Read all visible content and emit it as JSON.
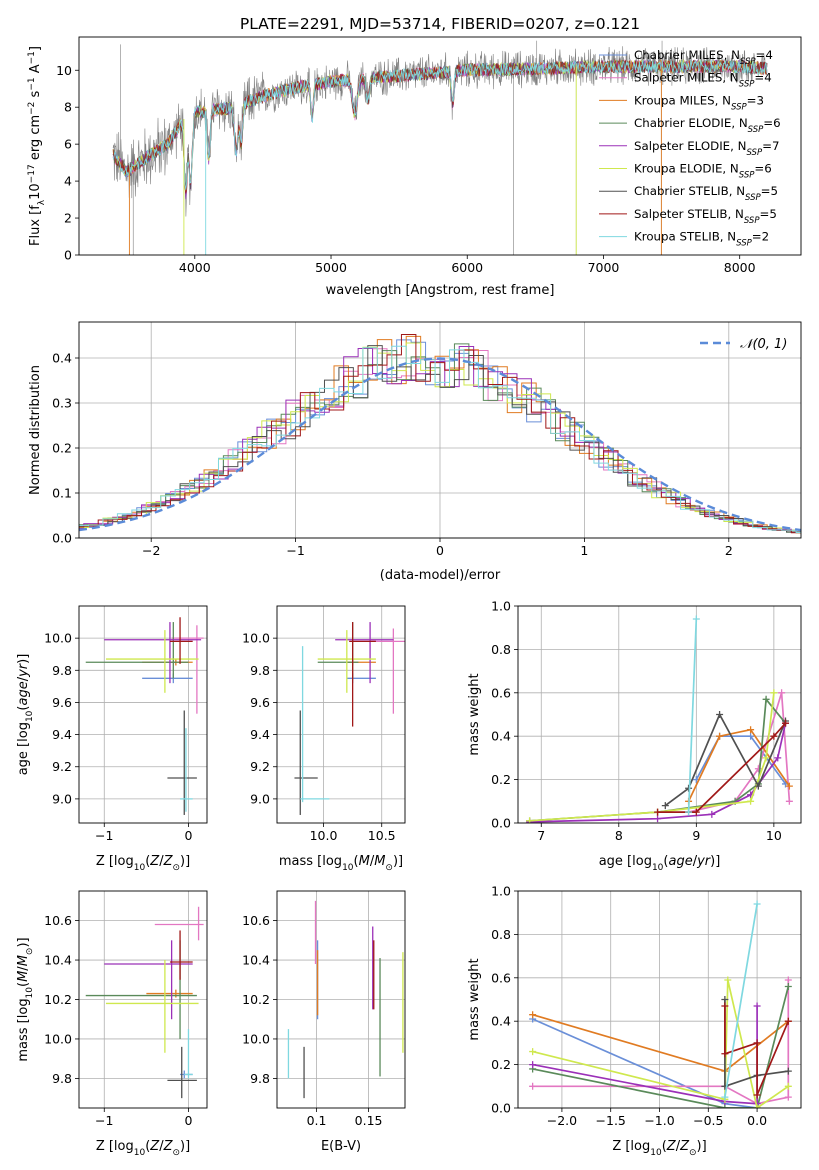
{
  "figure_title": "PLATE=2291, MJD=53714, FIBERID=0207, z=0.121",
  "colors": {
    "Chabrier MILES": "#6a8fd8",
    "Salpeter MILES": "#e377c2",
    "Kroupa MILES": "#e07b22",
    "Chabrier ELODIE": "#5a8a5a",
    "Salpeter ELODIE": "#9b30b8",
    "Kroupa ELODIE": "#cfe84e",
    "Chabrier STELIB": "#505050",
    "Salpeter STELIB": "#a01818",
    "Kroupa STELIB": "#7fd8e0"
  },
  "chart_data": [
    {
      "id": "spectrum",
      "type": "line",
      "xlabel": "wavelength [Angstrom, rest frame]",
      "ylabel": "Flux [f_λ 10^-17 erg cm^-2 s^-1 A^-1]",
      "xlim": [
        3150,
        8450
      ],
      "ylim": [
        0,
        11.8
      ],
      "xticks": [
        4000,
        5000,
        6000,
        7000,
        8000
      ],
      "yticks": [
        0,
        2,
        4,
        6,
        8,
        10
      ],
      "legend_position": "upper right",
      "legend": [
        {
          "pre": "Chabrier MILES, N",
          "sub": "SSP",
          "post": "=4"
        },
        {
          "pre": "Salpeter MILES, N",
          "sub": "SSP",
          "post": "=4"
        },
        {
          "pre": "Kroupa MILES, N",
          "sub": "SSP",
          "post": "=3"
        },
        {
          "pre": "Chabrier ELODIE, N",
          "sub": "SSP",
          "post": "=6"
        },
        {
          "pre": "Salpeter ELODIE, N",
          "sub": "SSP",
          "post": "=7"
        },
        {
          "pre": "Kroupa ELODIE, N",
          "sub": "SSP",
          "post": "=6"
        },
        {
          "pre": "Chabrier STELIB, N",
          "sub": "SSP",
          "post": "=5"
        },
        {
          "pre": "Salpeter STELIB, N",
          "sub": "SSP",
          "post": "=5"
        },
        {
          "pre": "Kroupa STELIB, N",
          "sub": "SSP",
          "post": "=2"
        }
      ],
      "continuum": [
        [
          3400,
          5.4
        ],
        [
          3500,
          4.5
        ],
        [
          3650,
          5.3
        ],
        [
          3800,
          6.0
        ],
        [
          3950,
          7.7
        ],
        [
          4100,
          7.8
        ],
        [
          4300,
          8.0
        ],
        [
          4500,
          8.6
        ],
        [
          4700,
          9.0
        ],
        [
          5000,
          9.4
        ],
        [
          5500,
          9.7
        ],
        [
          6000,
          10.0
        ],
        [
          6500,
          10.1
        ],
        [
          7000,
          10.2
        ],
        [
          7500,
          10.2
        ],
        [
          8000,
          10.2
        ],
        [
          8200,
          10.1
        ]
      ]
    },
    {
      "id": "residuals",
      "type": "line",
      "xlabel": "(data-model)/error",
      "ylabel": "Normed distribution",
      "xlim": [
        -2.5,
        2.5
      ],
      "ylim": [
        0,
        0.48
      ],
      "xticks": [
        -2,
        -1,
        0,
        1,
        2
      ],
      "yticks": [
        0.0,
        0.1,
        0.2,
        0.3,
        0.4
      ],
      "legend_label": "𝒩(0, 1)",
      "gaussian": {
        "mu": 0,
        "sigma": 1
      }
    },
    {
      "id": "age-vs-Z",
      "type": "scatter",
      "xlabel": "Z [log10(Z/Z☉)]",
      "ylabel": "age [log10(age/yr)]",
      "xlim": [
        -1.3,
        0.22
      ],
      "ylim": [
        8.85,
        10.2
      ],
      "xticks": [
        -1,
        0
      ],
      "yticks": [
        9.0,
        9.2,
        9.4,
        9.6,
        9.8,
        10.0
      ],
      "points": [
        {
          "s": "Chabrier MILES",
          "x": -0.18,
          "xlo": -0.55,
          "xhi": 0.05,
          "y": 9.75,
          "ylo": 9.72,
          "yhi": 9.78
        },
        {
          "s": "Salpeter MILES",
          "x": 0.1,
          "xlo": -0.2,
          "xhi": 0.18,
          "y": 10.0,
          "ylo": 9.53,
          "yhi": 10.08
        },
        {
          "s": "Kroupa MILES",
          "x": -0.15,
          "xlo": -0.55,
          "xhi": 0.05,
          "y": 9.85,
          "ylo": 9.83,
          "yhi": 9.87
        },
        {
          "s": "Chabrier ELODIE",
          "x": -0.18,
          "xlo": -1.22,
          "xhi": 0.0,
          "y": 9.85,
          "ylo": 9.75,
          "yhi": 10.1
        },
        {
          "s": "Salpeter ELODIE",
          "x": -0.22,
          "xlo": -1.0,
          "xhi": 0.15,
          "y": 9.99,
          "ylo": 9.72,
          "yhi": 10.1
        },
        {
          "s": "Kroupa ELODIE",
          "x": -0.28,
          "xlo": -0.98,
          "xhi": 0.12,
          "y": 9.87,
          "ylo": 9.66,
          "yhi": 10.05
        },
        {
          "s": "Chabrier STELIB",
          "x": -0.05,
          "xlo": -0.25,
          "xhi": 0.1,
          "y": 9.13,
          "ylo": 8.9,
          "yhi": 9.55
        },
        {
          "s": "Salpeter STELIB",
          "x": -0.1,
          "xlo": -0.22,
          "xhi": 0.05,
          "y": 9.98,
          "ylo": 9.84,
          "yhi": 10.13
        },
        {
          "s": "Kroupa STELIB",
          "x": -0.03,
          "xlo": -0.1,
          "xhi": 0.05,
          "y": 9.0,
          "ylo": 8.92,
          "yhi": 9.44
        }
      ]
    },
    {
      "id": "age-vs-mass",
      "type": "scatter",
      "xlabel": "mass [log10(M/M☉)]",
      "ylabel": "",
      "xlim": [
        9.6,
        10.7
      ],
      "ylim": [
        8.85,
        10.2
      ],
      "xticks": [
        10.0,
        10.5
      ],
      "yticks": [
        9.0,
        9.2,
        9.4,
        9.6,
        9.8,
        10.0
      ],
      "points": [
        {
          "s": "Chabrier MILES",
          "x": 10.25,
          "xlo": 10.2,
          "xhi": 10.45,
          "y": 9.75,
          "ylo": 9.72,
          "yhi": 9.78
        },
        {
          "s": "Salpeter MILES",
          "x": 10.6,
          "xlo": 10.4,
          "xhi": 10.7,
          "y": 9.98,
          "ylo": 9.53,
          "yhi": 10.06
        },
        {
          "s": "Kroupa MILES",
          "x": 10.25,
          "xlo": 10.2,
          "xhi": 10.45,
          "y": 9.85,
          "ylo": 9.83,
          "yhi": 9.87
        },
        {
          "s": "Chabrier ELODIE",
          "x": 10.25,
          "xlo": 9.95,
          "xhi": 10.3,
          "y": 9.85,
          "ylo": 9.75,
          "yhi": 10.1
        },
        {
          "s": "Salpeter ELODIE",
          "x": 10.4,
          "xlo": 10.1,
          "xhi": 10.6,
          "y": 9.99,
          "ylo": 9.72,
          "yhi": 10.1
        },
        {
          "s": "Kroupa ELODIE",
          "x": 10.2,
          "xlo": 9.95,
          "xhi": 10.45,
          "y": 9.87,
          "ylo": 9.66,
          "yhi": 10.05
        },
        {
          "s": "Chabrier STELIB",
          "x": 9.8,
          "xlo": 9.75,
          "xhi": 9.95,
          "y": 9.13,
          "ylo": 8.9,
          "yhi": 9.55
        },
        {
          "s": "Salpeter STELIB",
          "x": 10.25,
          "xlo": 10.22,
          "xhi": 10.45,
          "y": 9.98,
          "ylo": 9.45,
          "yhi": 10.1
        },
        {
          "s": "Kroupa STELIB",
          "x": 9.82,
          "xlo": 9.8,
          "xhi": 10.05,
          "y": 9.0,
          "ylo": 8.98,
          "yhi": 9.95
        }
      ]
    },
    {
      "id": "weight-vs-age",
      "type": "line",
      "xlabel": "age [log10(age/yr)]",
      "ylabel": "mass weight",
      "xlim": [
        6.7,
        10.35
      ],
      "ylim": [
        0,
        1.0
      ],
      "xticks": [
        7,
        8,
        9,
        10
      ],
      "yticks": [
        0.0,
        0.2,
        0.4,
        0.6,
        0.8,
        1.0
      ],
      "series": [
        {
          "s": "Chabrier MILES",
          "x": [
            9.0,
            9.3,
            9.7,
            10.15
          ],
          "y": [
            0.2,
            0.4,
            0.4,
            0.18
          ]
        },
        {
          "s": "Salpeter MILES",
          "x": [
            8.9,
            9.5,
            9.8,
            10.1,
            10.2
          ],
          "y": [
            0.05,
            0.1,
            0.25,
            0.6,
            0.1
          ]
        },
        {
          "s": "Kroupa MILES",
          "x": [
            8.9,
            9.3,
            9.7,
            10.2
          ],
          "y": [
            0.1,
            0.4,
            0.43,
            0.17
          ]
        },
        {
          "s": "Chabrier ELODIE",
          "x": [
            6.85,
            8.5,
            9.5,
            9.8,
            9.9,
            10.15
          ],
          "y": [
            0.01,
            0.05,
            0.1,
            0.18,
            0.57,
            0.46
          ]
        },
        {
          "s": "Salpeter ELODIE",
          "x": [
            6.85,
            8.5,
            9.2,
            9.7,
            10.05,
            10.15
          ],
          "y": [
            0.005,
            0.02,
            0.04,
            0.13,
            0.3,
            0.46
          ]
        },
        {
          "s": "Kroupa ELODIE",
          "x": [
            6.85,
            8.5,
            9.7,
            9.9,
            10.0
          ],
          "y": [
            0.01,
            0.05,
            0.1,
            0.3,
            0.6
          ]
        },
        {
          "s": "Chabrier STELIB",
          "x": [
            8.6,
            8.9,
            9.3,
            9.8,
            10.15
          ],
          "y": [
            0.08,
            0.16,
            0.5,
            0.17,
            0.47
          ]
        },
        {
          "s": "Salpeter STELIB",
          "x": [
            8.5,
            9.0,
            10.0,
            10.15
          ],
          "y": [
            0.05,
            0.05,
            0.4,
            0.46
          ]
        },
        {
          "s": "Kroupa STELIB",
          "x": [
            8.9,
            9.0
          ],
          "y": [
            0.05,
            0.94
          ]
        }
      ]
    },
    {
      "id": "mass-vs-Z",
      "type": "scatter",
      "xlabel": "Z [log10(Z/Z☉)]",
      "ylabel": "mass [log10(M/M☉)]",
      "xlim": [
        -1.3,
        0.22
      ],
      "ylim": [
        9.65,
        10.75
      ],
      "xticks": [
        -1,
        0
      ],
      "yticks": [
        9.8,
        10.0,
        10.2,
        10.4,
        10.6
      ],
      "points": [
        {
          "s": "Chabrier MILES",
          "x": -0.05,
          "xlo": -0.1,
          "xhi": 0.05,
          "y": 9.82,
          "ylo": 9.8,
          "yhi": 9.84
        },
        {
          "s": "Salpeter MILES",
          "x": 0.12,
          "xlo": -0.4,
          "xhi": 0.18,
          "y": 10.58,
          "ylo": 10.5,
          "yhi": 10.67
        },
        {
          "s": "Kroupa MILES",
          "x": -0.15,
          "xlo": -0.5,
          "xhi": 0.05,
          "y": 10.23,
          "ylo": 10.21,
          "yhi": 10.25
        },
        {
          "s": "Chabrier ELODIE",
          "x": -0.1,
          "xlo": -1.22,
          "xhi": 0.1,
          "y": 10.22,
          "ylo": 10.0,
          "yhi": 10.5
        },
        {
          "s": "Salpeter ELODIE",
          "x": -0.2,
          "xlo": -1.0,
          "xhi": 0.05,
          "y": 10.38,
          "ylo": 10.1,
          "yhi": 10.5
        },
        {
          "s": "Kroupa ELODIE",
          "x": -0.28,
          "xlo": -0.98,
          "xhi": 0.12,
          "y": 10.18,
          "ylo": 9.93,
          "yhi": 10.4
        },
        {
          "s": "Chabrier STELIB",
          "x": -0.08,
          "xlo": -0.25,
          "xhi": 0.1,
          "y": 9.79,
          "ylo": 9.7,
          "yhi": 9.96
        },
        {
          "s": "Salpeter STELIB",
          "x": -0.1,
          "xlo": -0.22,
          "xhi": 0.05,
          "y": 10.39,
          "ylo": 10.3,
          "yhi": 10.55
        },
        {
          "s": "Kroupa STELIB",
          "x": 0.0,
          "xlo": -0.05,
          "xhi": 0.05,
          "y": 9.82,
          "ylo": 9.8,
          "yhi": 10.05
        }
      ]
    },
    {
      "id": "mass-vs-ebv",
      "type": "scatter",
      "xlabel": "E(B-V)",
      "ylabel": "",
      "xlim": [
        0.062,
        0.185
      ],
      "ylim": [
        9.65,
        10.75
      ],
      "xticks": [
        0.1,
        0.15
      ],
      "yticks": [
        9.8,
        10.0,
        10.2,
        10.4,
        10.6
      ],
      "points": [
        {
          "s": "Chabrier MILES",
          "x": 0.101,
          "y": 10.3,
          "ylo": 10.1,
          "yhi": 10.5
        },
        {
          "s": "Salpeter MILES",
          "x": 0.099,
          "y": 10.5,
          "ylo": 10.38,
          "yhi": 10.7
        },
        {
          "s": "Kroupa MILES",
          "x": 0.101,
          "y": 10.2,
          "ylo": 10.12,
          "yhi": 10.45
        },
        {
          "s": "Chabrier ELODIE",
          "x": 0.161,
          "y": 10.1,
          "ylo": 9.81,
          "yhi": 10.41
        },
        {
          "s": "Salpeter ELODIE",
          "x": 0.154,
          "y": 10.35,
          "ylo": 10.15,
          "yhi": 10.57
        },
        {
          "s": "Kroupa ELODIE",
          "x": 0.183,
          "y": 10.2,
          "ylo": 9.93,
          "yhi": 10.44
        },
        {
          "s": "Chabrier STELIB",
          "x": 0.088,
          "y": 9.8,
          "ylo": 9.7,
          "yhi": 9.96
        },
        {
          "s": "Salpeter STELIB",
          "x": 0.155,
          "y": 10.38,
          "ylo": 10.15,
          "yhi": 10.5
        },
        {
          "s": "Kroupa STELIB",
          "x": 0.073,
          "y": 9.92,
          "ylo": 9.8,
          "yhi": 10.05
        }
      ]
    },
    {
      "id": "weight-vs-Z",
      "type": "line",
      "xlabel": "Z [log10(Z/Z☉)]",
      "ylabel": "mass weight",
      "xlim": [
        -2.45,
        0.45
      ],
      "ylim": [
        0,
        1.0
      ],
      "xticks": [
        -2.0,
        -1.5,
        -1.0,
        -0.5,
        0.0
      ],
      "yticks": [
        0.0,
        0.2,
        0.4,
        0.6,
        0.8,
        1.0
      ],
      "series": [
        {
          "s": "Chabrier MILES",
          "x": [
            -2.3,
            -0.33,
            0.0
          ],
          "y": [
            0.41,
            0.02,
            0.0
          ]
        },
        {
          "s": "Salpeter MILES",
          "x": [
            -2.3,
            -0.33,
            0.0,
            0.32,
            0.32
          ],
          "y": [
            0.1,
            0.1,
            0.02,
            0.05,
            0.59
          ]
        },
        {
          "s": "Kroupa MILES",
          "x": [
            -2.3,
            -0.33,
            0.32
          ],
          "y": [
            0.43,
            0.17,
            0.4
          ]
        },
        {
          "s": "Chabrier ELODIE",
          "x": [
            -2.3,
            -0.33,
            0.0,
            0.32
          ],
          "y": [
            0.18,
            0.0,
            0.0,
            0.56
          ]
        },
        {
          "s": "Salpeter ELODIE",
          "x": [
            -2.3,
            -0.33,
            0.0,
            0.0
          ],
          "y": [
            0.2,
            0.03,
            0.02,
            0.47
          ]
        },
        {
          "s": "Kroupa ELODIE",
          "x": [
            -2.3,
            -0.33,
            -0.3,
            0.0,
            0.32
          ],
          "y": [
            0.26,
            0.04,
            0.59,
            0.0,
            0.1
          ]
        },
        {
          "s": "Chabrier STELIB",
          "x": [
            -0.33,
            -0.33,
            0.0,
            0.32
          ],
          "y": [
            0.5,
            0.1,
            0.15,
            0.17
          ]
        },
        {
          "s": "Salpeter STELIB",
          "x": [
            -0.33,
            -0.33,
            0.0,
            0.0,
            0.32
          ],
          "y": [
            0.47,
            0.25,
            0.3,
            0.06,
            0.4
          ]
        },
        {
          "s": "Kroupa STELIB",
          "x": [
            -0.33,
            0.0
          ],
          "y": [
            0.05,
            0.94
          ]
        }
      ]
    }
  ]
}
